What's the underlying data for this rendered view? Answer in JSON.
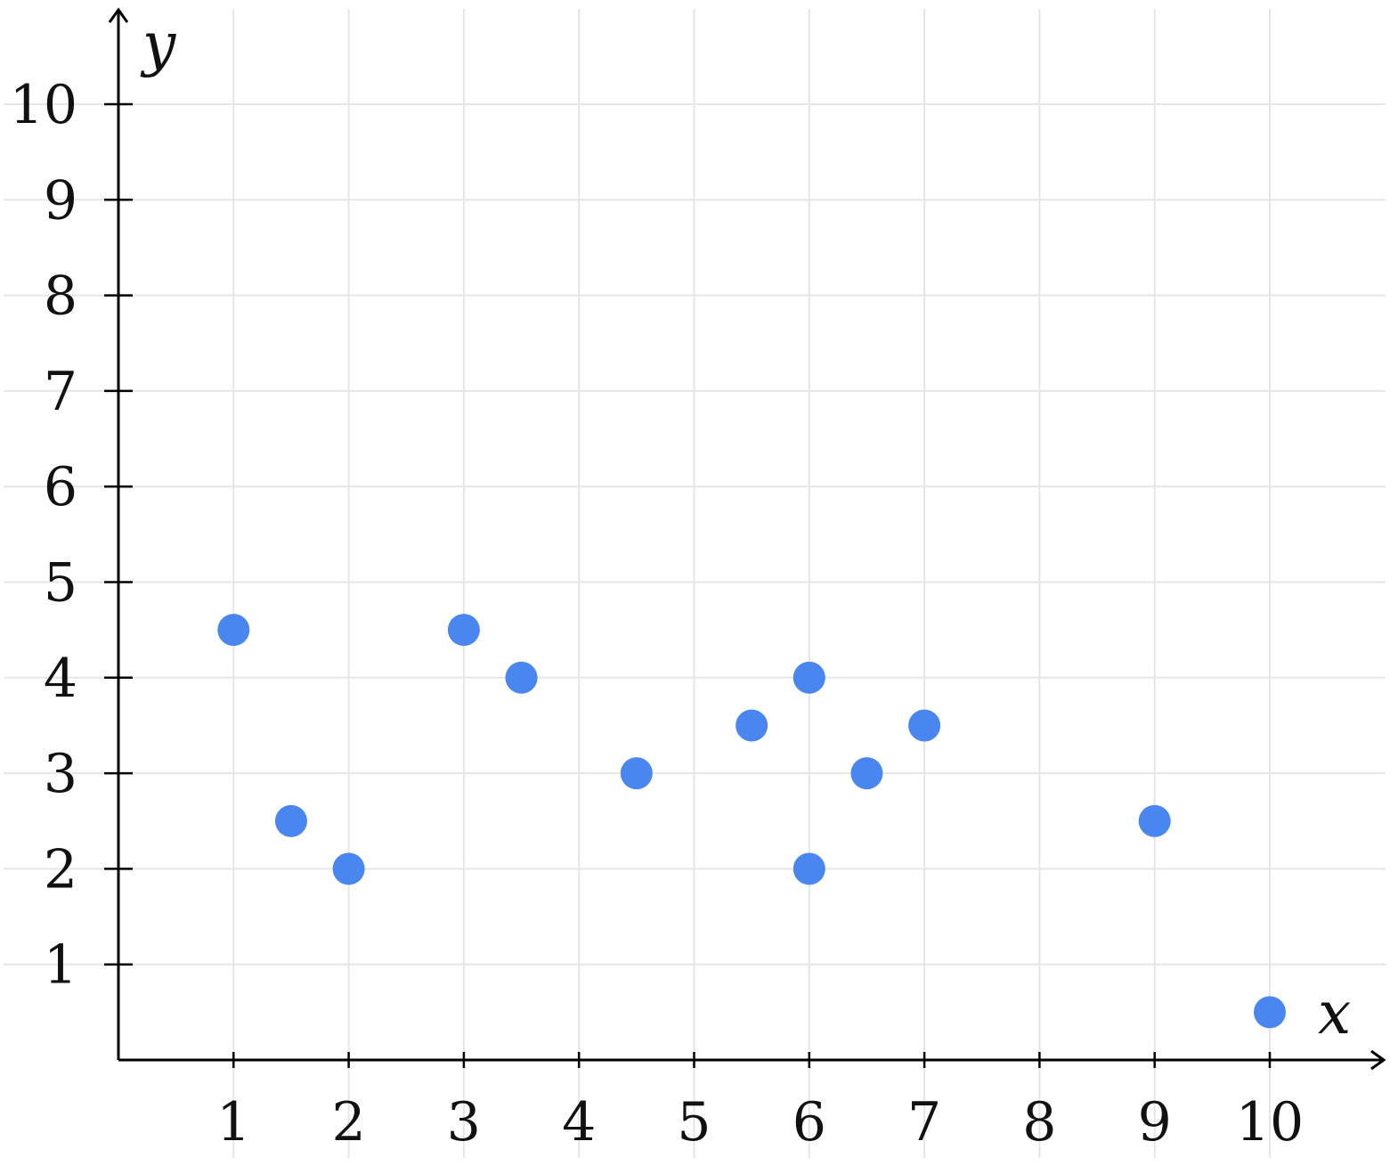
{
  "chart_data": {
    "type": "scatter",
    "title": "",
    "xlabel": "x",
    "ylabel": "y",
    "xlim": [
      0,
      10.5
    ],
    "ylim": [
      0,
      10.5
    ],
    "x_ticks": [
      "1",
      "2",
      "3",
      "4",
      "5",
      "6",
      "7",
      "8",
      "9",
      "10"
    ],
    "y_ticks": [
      "1",
      "2",
      "3",
      "4",
      "5",
      "6",
      "7",
      "8",
      "9",
      "10"
    ],
    "grid": true,
    "point_color": "#4a86f0",
    "points": [
      {
        "x": 1,
        "y": 4.5
      },
      {
        "x": 1.5,
        "y": 2.5
      },
      {
        "x": 2,
        "y": 2
      },
      {
        "x": 3,
        "y": 4.5
      },
      {
        "x": 3.5,
        "y": 4
      },
      {
        "x": 4.5,
        "y": 3
      },
      {
        "x": 5.5,
        "y": 3.5
      },
      {
        "x": 6,
        "y": 4
      },
      {
        "x": 6,
        "y": 2
      },
      {
        "x": 6.5,
        "y": 3
      },
      {
        "x": 7,
        "y": 3.5
      },
      {
        "x": 9,
        "y": 2.5
      },
      {
        "x": 10,
        "y": 0.5
      }
    ]
  }
}
